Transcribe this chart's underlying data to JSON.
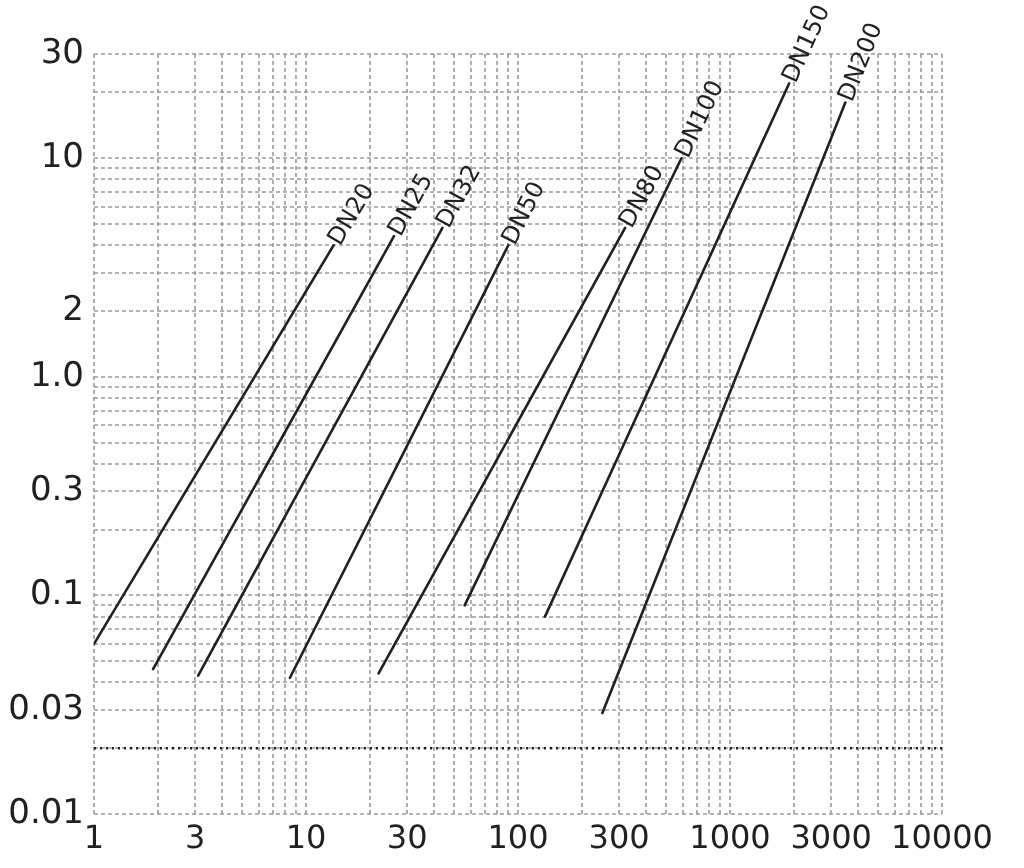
{
  "chart_data": {
    "type": "line",
    "log": "xy",
    "grid": true,
    "marker": "none",
    "line_style": "solid",
    "xlim": [
      1,
      10000
    ],
    "ylim": [
      0.01,
      30
    ],
    "xticks": [
      1,
      {
        "value": 2,
        "label": null
      },
      3,
      {
        "value": 4,
        "label": null
      },
      {
        "value": 5,
        "label": null
      },
      {
        "value": 6,
        "label": null
      },
      {
        "value": 7,
        "label": null
      },
      {
        "value": 8,
        "label": null
      },
      {
        "value": 9,
        "label": null
      },
      10,
      {
        "value": 20,
        "label": null
      },
      30,
      {
        "value": 40,
        "label": null
      },
      {
        "value": 50,
        "label": null
      },
      {
        "value": 60,
        "label": null
      },
      {
        "value": 70,
        "label": null
      },
      {
        "value": 80,
        "label": null
      },
      {
        "value": 90,
        "label": null
      },
      100,
      {
        "value": 200,
        "label": null
      },
      300,
      {
        "value": 400,
        "label": null
      },
      {
        "value": 500,
        "label": null
      },
      {
        "value": 600,
        "label": null
      },
      {
        "value": 700,
        "label": null
      },
      {
        "value": 800,
        "label": null
      },
      {
        "value": 900,
        "label": null
      },
      1000,
      {
        "value": 2000,
        "label": null
      },
      3000,
      {
        "value": 4000,
        "label": null
      },
      {
        "value": 5000,
        "label": null
      },
      {
        "value": 6000,
        "label": null
      },
      {
        "value": 7000,
        "label": null
      },
      {
        "value": 8000,
        "label": null
      },
      {
        "value": 9000,
        "label": null
      },
      10000
    ],
    "yticks": [
      0.01,
      {
        "value": 0.02,
        "label": null
      },
      0.03,
      {
        "value": 0.04,
        "label": null
      },
      {
        "value": 0.05,
        "label": null
      },
      {
        "value": 0.06,
        "label": null
      },
      {
        "value": 0.07,
        "label": null
      },
      {
        "value": 0.08,
        "label": null
      },
      {
        "value": 0.09,
        "label": null
      },
      0.1,
      {
        "value": 0.2,
        "label": null
      },
      0.3,
      {
        "value": 0.4,
        "label": null
      },
      {
        "value": 0.5,
        "label": null
      },
      {
        "value": 0.6,
        "label": null
      },
      {
        "value": 0.7,
        "label": null
      },
      {
        "value": 0.8,
        "label": null
      },
      {
        "value": 0.9,
        "label": null
      },
      {
        "value": 1,
        "label": "1.0"
      },
      2,
      {
        "value": 3,
        "label": null
      },
      {
        "value": 4,
        "label": null
      },
      {
        "value": 5,
        "label": null
      },
      {
        "value": 6,
        "label": null
      },
      {
        "value": 7,
        "label": null
      },
      {
        "value": 8,
        "label": null
      },
      {
        "value": 9,
        "label": null
      },
      10,
      {
        "value": 20,
        "label": null
      },
      30
    ],
    "ref_lines": [
      {
        "axis": "y",
        "value": 0.02,
        "color": "#231f20",
        "line_style": "dotted"
      }
    ],
    "series": [
      {
        "name": "DN20",
        "color": "#231f20",
        "x": [
          1,
          13.5
        ],
        "values": [
          0.06,
          4
        ]
      },
      {
        "name": "DN25",
        "color": "#231f20",
        "x": [
          1.9,
          26
        ],
        "values": [
          0.046,
          4.4
        ]
      },
      {
        "name": "DN32",
        "color": "#231f20",
        "x": [
          3.1,
          44
        ],
        "values": [
          0.043,
          4.8
        ]
      },
      {
        "name": "DN50",
        "color": "#231f20",
        "x": [
          8.4,
          90
        ],
        "values": [
          0.042,
          4
        ]
      },
      {
        "name": "DN80",
        "color": "#231f20",
        "x": [
          22,
          320
        ],
        "values": [
          0.044,
          4.8
        ]
      },
      {
        "name": "DN100",
        "color": "#231f20",
        "x": [
          56,
          590
        ],
        "values": [
          0.09,
          10
        ]
      },
      {
        "name": "DN150",
        "color": "#231f20",
        "x": [
          134,
          1900
        ],
        "values": [
          0.08,
          22
        ]
      },
      {
        "name": "DN200",
        "color": "#231f20",
        "x": [
          250,
          3500
        ],
        "values": [
          0.029,
          18
        ]
      }
    ]
  }
}
